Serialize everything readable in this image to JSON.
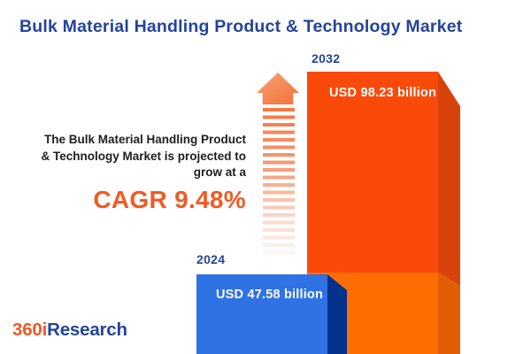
{
  "title": "Bulk Material Handling Product & Technology Market",
  "projection": {
    "lines": [
      "The Bulk Material Handling Product",
      "& Technology Market is projected to",
      "grow at a"
    ],
    "cagr": "CAGR 9.48%"
  },
  "chart_data": {
    "type": "bar",
    "title": "Bulk Material Handling Product & Technology Market",
    "categories": [
      "2024",
      "2032"
    ],
    "values": [
      47.58,
      98.23
    ],
    "value_labels": [
      "USD 47.58 billion",
      "USD 98.23 billion"
    ],
    "currency": "USD",
    "unit": "billion",
    "cagr_percent": 9.48,
    "annotation": "The Bulk Material Handling Product & Technology Market is projected to grow at a CAGR 9.48%",
    "orientation": "vertical",
    "legend": false,
    "grid": false,
    "bar_colors": [
      "#2F72E4",
      "#FA4A0A"
    ],
    "style": "3d-infographic"
  },
  "bars": {
    "b2024": {
      "year": "2024",
      "label": "USD 47.58 billion"
    },
    "b2032": {
      "year": "2032",
      "label": "USD 98.23 billion"
    }
  },
  "logo": {
    "prefix": "360i",
    "suffix": "Research"
  },
  "icons": {
    "growth_arrow": "striped-up-arrow"
  },
  "colors": {
    "brand-blue": "#24439B",
    "brand-orange": "#F15A22",
    "text-dark": "#1E1E1E",
    "bar2032-front": "#FA4A0A",
    "bar2032-side": "#D8430B",
    "bar2032-base-front": "#FE6D01",
    "bar2032-base-side": "#E05E03",
    "bar2024-front": "#2F72E4",
    "bar2024-side": "#04318C",
    "arrow-start": "#F9A177",
    "arrow-end": "#F2713A"
  }
}
